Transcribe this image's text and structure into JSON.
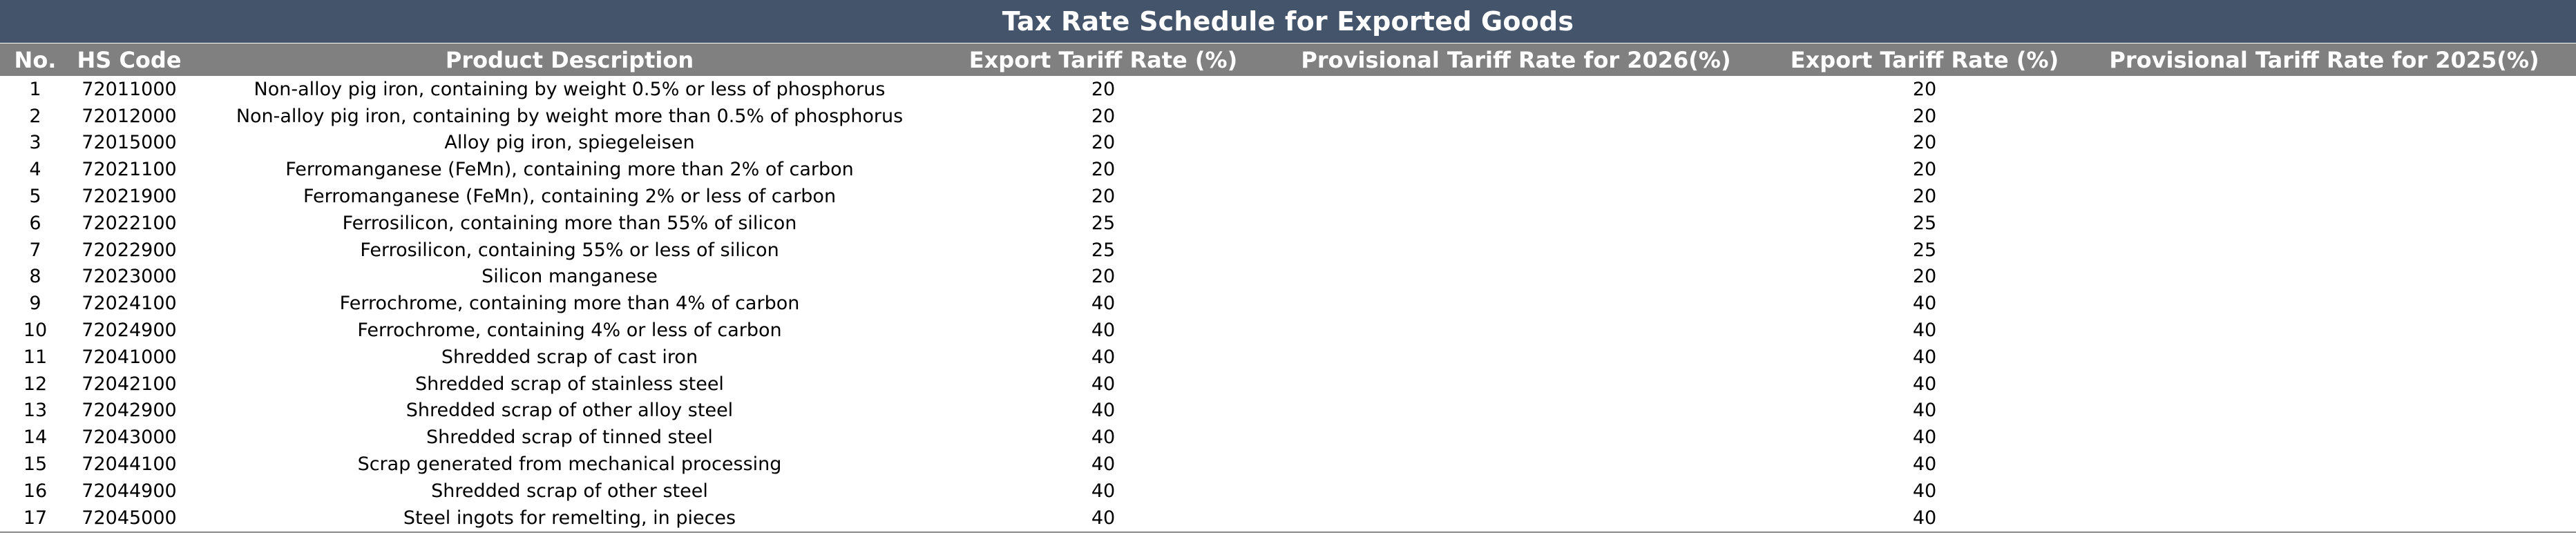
{
  "sheet": {
    "title": "Tax Rate Schedule for Exported Goods",
    "colors": {
      "title_bg": "#44546a",
      "header_bg": "#808080",
      "header_text": "#ffffff"
    },
    "columns": [
      "No.",
      "HS Code",
      "Product Description",
      "Export Tariff Rate (%)",
      "Provisional Tariff Rate for 2026(%)",
      "Export Tariff Rate (%)",
      "Provisional Tariff Rate for 2025(%)"
    ],
    "rows": [
      {
        "no": "1",
        "hs": "72011000",
        "desc": "Non-alloy pig iron, containing by weight 0.5% or less of phosphorus",
        "rate1": "20",
        "prov2026": "",
        "rate2": "20",
        "prov2025": ""
      },
      {
        "no": "2",
        "hs": "72012000",
        "desc": "Non-alloy pig iron, containing by weight more than 0.5% of phosphorus",
        "rate1": "20",
        "prov2026": "",
        "rate2": "20",
        "prov2025": ""
      },
      {
        "no": "3",
        "hs": "72015000",
        "desc": "Alloy pig iron, spiegeleisen",
        "rate1": "20",
        "prov2026": "",
        "rate2": "20",
        "prov2025": ""
      },
      {
        "no": "4",
        "hs": "72021100",
        "desc": "Ferromanganese (FeMn), containing more than 2% of carbon",
        "rate1": "20",
        "prov2026": "",
        "rate2": "20",
        "prov2025": ""
      },
      {
        "no": "5",
        "hs": "72021900",
        "desc": "Ferromanganese (FeMn), containing 2% or less of carbon",
        "rate1": "20",
        "prov2026": "",
        "rate2": "20",
        "prov2025": ""
      },
      {
        "no": "6",
        "hs": "72022100",
        "desc": "Ferrosilicon, containing more than 55% of silicon",
        "rate1": "25",
        "prov2026": "",
        "rate2": "25",
        "prov2025": ""
      },
      {
        "no": "7",
        "hs": "72022900",
        "desc": "Ferrosilicon, containing 55% or less of silicon",
        "rate1": "25",
        "prov2026": "",
        "rate2": "25",
        "prov2025": ""
      },
      {
        "no": "8",
        "hs": "72023000",
        "desc": "Silicon manganese",
        "rate1": "20",
        "prov2026": "",
        "rate2": "20",
        "prov2025": ""
      },
      {
        "no": "9",
        "hs": "72024100",
        "desc": "Ferrochrome, containing more than 4% of carbon",
        "rate1": "40",
        "prov2026": "",
        "rate2": "40",
        "prov2025": ""
      },
      {
        "no": "10",
        "hs": "72024900",
        "desc": "Ferrochrome, containing 4% or less of carbon",
        "rate1": "40",
        "prov2026": "",
        "rate2": "40",
        "prov2025": ""
      },
      {
        "no": "11",
        "hs": "72041000",
        "desc": "Shredded scrap of cast iron",
        "rate1": "40",
        "prov2026": "",
        "rate2": "40",
        "prov2025": ""
      },
      {
        "no": "12",
        "hs": "72042100",
        "desc": "Shredded scrap of stainless steel",
        "rate1": "40",
        "prov2026": "",
        "rate2": "40",
        "prov2025": ""
      },
      {
        "no": "13",
        "hs": "72042900",
        "desc": "Shredded scrap of other alloy steel",
        "rate1": "40",
        "prov2026": "",
        "rate2": "40",
        "prov2025": ""
      },
      {
        "no": "14",
        "hs": "72043000",
        "desc": "Shredded scrap of tinned steel",
        "rate1": "40",
        "prov2026": "",
        "rate2": "40",
        "prov2025": ""
      },
      {
        "no": "15",
        "hs": "72044100",
        "desc": "Scrap generated from mechanical processing",
        "rate1": "40",
        "prov2026": "",
        "rate2": "40",
        "prov2025": ""
      },
      {
        "no": "16",
        "hs": "72044900",
        "desc": "Shredded scrap of other steel",
        "rate1": "40",
        "prov2026": "",
        "rate2": "40",
        "prov2025": ""
      },
      {
        "no": "17",
        "hs": "72045000",
        "desc": "Steel ingots for remelting, in pieces",
        "rate1": "40",
        "prov2026": "",
        "rate2": "40",
        "prov2025": ""
      }
    ]
  }
}
